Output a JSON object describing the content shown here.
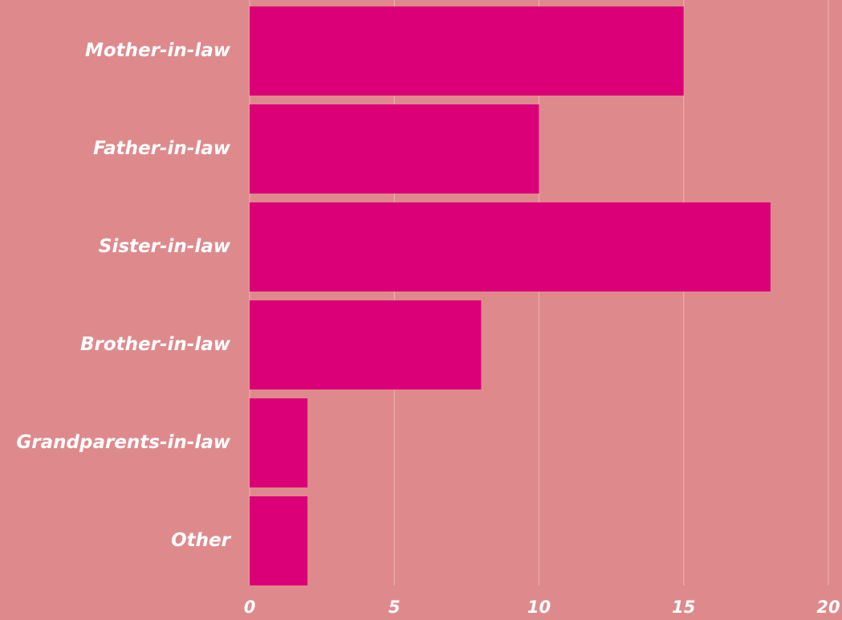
{
  "chart_data": {
    "type": "hbar",
    "categories": [
      "Mother-in-law",
      "Father-in-law",
      "Sister-in-law",
      "Brother-in-law",
      "Grandparents-in-law",
      "Other"
    ],
    "values": [
      15,
      10,
      18,
      8,
      2,
      2
    ],
    "color": "#dc0078",
    "xlim": [
      0,
      20
    ],
    "xticks": [
      0,
      5,
      10,
      15,
      20
    ],
    "grid": true
  }
}
